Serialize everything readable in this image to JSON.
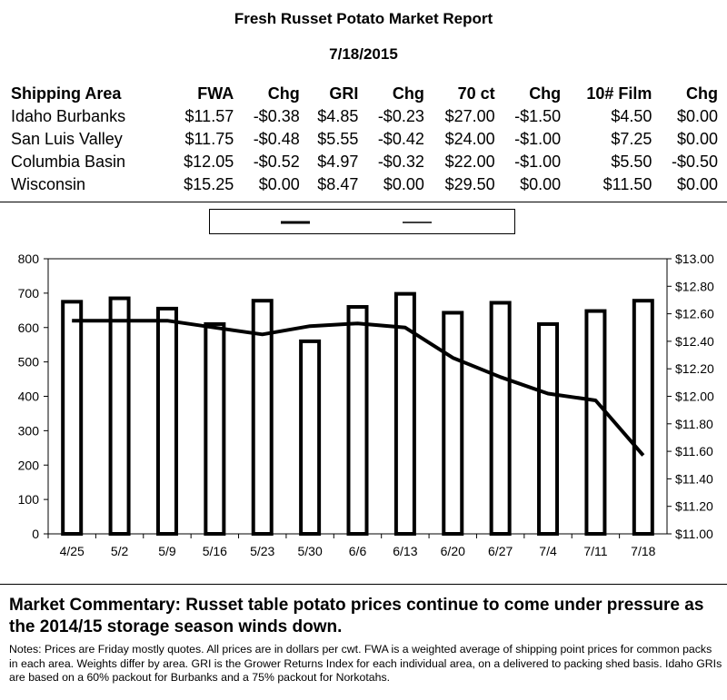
{
  "header": {
    "title": "Fresh Russet Potato Market Report",
    "date": "7/18/2015"
  },
  "price_table": {
    "columns": [
      "Shipping Area",
      "FWA",
      "Chg",
      "GRI",
      "Chg",
      "70 ct",
      "Chg",
      "10# Film",
      "Chg"
    ],
    "rows": [
      [
        "Idaho Burbanks",
        "$11.57",
        "-$0.38",
        "$4.85",
        "-$0.23",
        "$27.00",
        "-$1.50",
        "$4.50",
        "$0.00"
      ],
      [
        "San Luis Valley",
        "$11.75",
        "-$0.48",
        "$5.55",
        "-$0.42",
        "$24.00",
        "-$1.00",
        "$7.25",
        "$0.00"
      ],
      [
        "Columbia Basin",
        "$12.05",
        "-$0.52",
        "$4.97",
        "-$0.32",
        "$22.00",
        "-$1.00",
        "$5.50",
        "-$0.50"
      ],
      [
        "Wisconsin",
        "$15.25",
        "$0.00",
        "$8.47",
        "$0.00",
        "$29.50",
        "$0.00",
        "$11.50",
        "$0.00"
      ]
    ]
  },
  "chart_data": {
    "type": "bar",
    "categories": [
      "4/25",
      "5/2",
      "5/9",
      "5/16",
      "5/23",
      "5/30",
      "6/6",
      "6/13",
      "6/20",
      "6/27",
      "7/4",
      "7/11",
      "7/18"
    ],
    "series": [
      {
        "type": "bar",
        "axis": "left",
        "values": [
          675,
          685,
          655,
          610,
          678,
          560,
          660,
          698,
          643,
          672,
          610,
          648,
          678
        ]
      },
      {
        "type": "line",
        "axis": "right",
        "values": [
          12.55,
          12.55,
          12.55,
          12.5,
          12.45,
          12.51,
          12.53,
          12.5,
          12.28,
          12.14,
          12.02,
          11.97,
          11.57
        ]
      }
    ],
    "ylim_left": [
      0,
      800
    ],
    "ylim_right": [
      11.0,
      13.0
    ],
    "yticks_left": [
      "0",
      "100",
      "200",
      "300",
      "400",
      "500",
      "600",
      "700",
      "800"
    ],
    "yticks_right": [
      "$11.00",
      "$11.20",
      "$11.40",
      "$11.60",
      "$11.80",
      "$12.00",
      "$12.20",
      "$12.40",
      "$12.60",
      "$12.80",
      "$13.00"
    ],
    "grid": false,
    "legend": "top-center",
    "colors": {
      "bar_fill": "#ffffff",
      "bar_stroke": "#000000",
      "line": "#000000"
    }
  },
  "commentary": "Market Commentary: Russet table potato prices continue to come under pressure as the 2014/15 storage season winds down.",
  "notes": "Notes: Prices are Friday mostly quotes. All prices are in dollars per cwt. FWA is a weighted average of shipping point prices for common packs in each area. Weights differ by area. GRI is the Grower Returns Index for each individual area, on a delivered to packing shed basis. Idaho GRIs are based on a 60% packout for Burbanks and a 75% packout for Norkotahs."
}
